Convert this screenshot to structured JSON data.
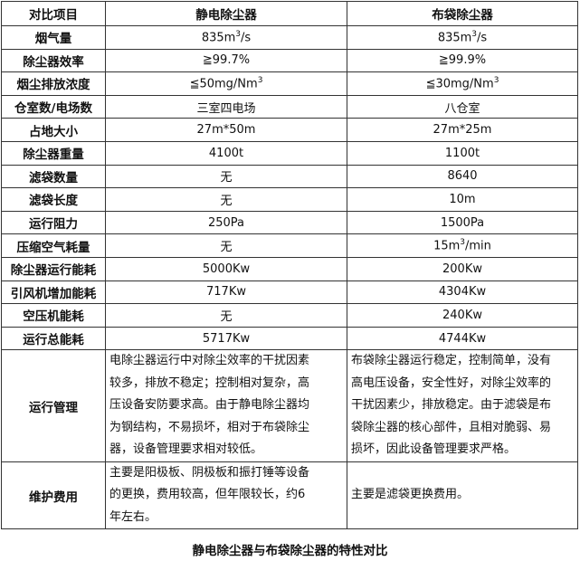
{
  "header": [
    "对比项目",
    "静电除尘器",
    "布袋除尘器"
  ],
  "rows": [
    {
      "item": "烟气量",
      "a": "835m",
      "a_sup": "3",
      "a_tail": "/s",
      "b": "835m",
      "b_sup": "3",
      "b_tail": "/s"
    },
    {
      "item": "除尘器效率",
      "a": "≧99.7%",
      "b": "≧99.9%"
    },
    {
      "item": "烟尘排放浓度",
      "a": "≦50mg/Nm",
      "a_sup": "3",
      "b": "≦30mg/Nm",
      "b_sup": "3"
    },
    {
      "item": "仓室数/电场数",
      "a": "三室四电场",
      "b": "八仓室"
    },
    {
      "item": "占地大小",
      "a": "27m*50m",
      "b": "27m*25m"
    },
    {
      "item": "除尘器重量",
      "a": "4100t",
      "b": "1100t"
    },
    {
      "item": "滤袋数量",
      "a": "无",
      "b": "8640"
    },
    {
      "item": "滤袋长度",
      "a": "无",
      "b": "10m"
    },
    {
      "item": "运行阻力",
      "a": "250Pa",
      "b": "1500Pa"
    },
    {
      "item": "压缩空气耗量",
      "a": "无",
      "b": "15m",
      "b_sup": "3",
      "b_tail": "/min"
    },
    {
      "item": "除尘器运行能耗",
      "a": "5000Kw",
      "b": "200Kw"
    },
    {
      "item": "引风机增加能耗",
      "a": "717Kw",
      "b": "4304Kw"
    },
    {
      "item": "空压机能耗",
      "a": "无",
      "b": "240Kw"
    },
    {
      "item": "运行总能耗",
      "a": "5717Kw",
      "b": "4744Kw"
    }
  ],
  "management": {
    "item": "运行管理",
    "a": [
      "电除尘器运行中对除尘效率的干扰因素",
      "较多，排放不稳定；控制相对复杂，高",
      "压设备安防要求高。由于静电除尘器均",
      "为钢结构，不易损坏，相对于布袋除尘",
      "器，设备管理要求相对较低。"
    ],
    "b": [
      "布袋除尘器运行稳定，控制简单，没有",
      "高电压设备，安全性好，对除尘效率的",
      "干扰因素少，排放稳定。由于滤袋是布",
      "袋除尘器的核心部件，且相对脆弱、易",
      "损坏，因此设备管理要求严格。"
    ]
  },
  "maintenance": {
    "item": "维护费用",
    "a": [
      "主要是阳极板、阴极板和振打锤等设备",
      "的更换，费用较高，但年限较长，约6",
      "年左右。"
    ],
    "b": [
      "主要是滤袋更换费用。"
    ]
  },
  "caption": "静电除尘器与布袋除尘器的特性对比"
}
